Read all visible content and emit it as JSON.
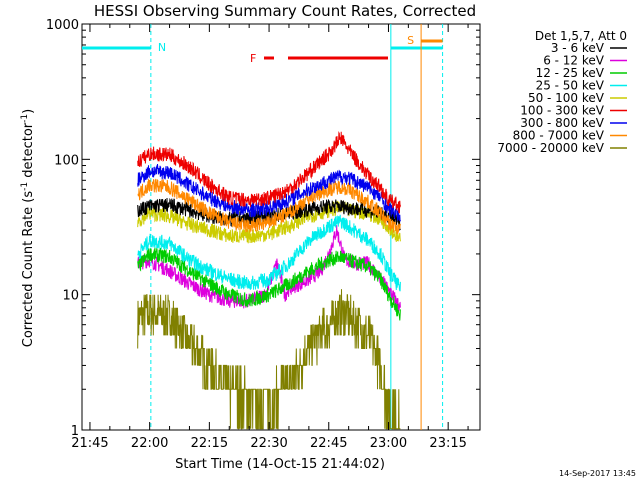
{
  "chart_data": {
    "type": "line",
    "title": "HESSI Observing Summary Count Rates, Corrected",
    "xlabel": "Start Time (14-Oct-15 21:44:02)",
    "ylabel": "Corrected Count Rate (s⁻¹ detector⁻¹)",
    "ylabel_main": "Corrected Count Rate (s",
    "ylabel_exp1": "-1",
    "ylabel_mid": " detector",
    "ylabel_exp2": "-1",
    "ylabel_end": ")",
    "yscale": "log",
    "ylim": [
      1,
      1000
    ],
    "xlim_minutes": [
      -2,
      98
    ],
    "x_tick_labels": [
      {
        "t": 0,
        "label": "21:45"
      },
      {
        "t": 15,
        "label": "22:00"
      },
      {
        "t": 30,
        "label": "22:15"
      },
      {
        "t": 45,
        "label": "22:30"
      },
      {
        "t": 60,
        "label": "22:45"
      },
      {
        "t": 75,
        "label": "23:00"
      },
      {
        "t": 90,
        "label": "23:15"
      }
    ],
    "y_tick_labels": [
      {
        "v": 1,
        "label": "1"
      },
      {
        "v": 10,
        "label": "10"
      },
      {
        "v": 100,
        "label": "100"
      },
      {
        "v": 1000,
        "label": "1000"
      }
    ],
    "legend_title": "Det 1,5,7, Att 0",
    "legend_position": "right",
    "series": [
      {
        "name": "3 - 6 keV",
        "color": "#000000",
        "values": [
          [
            12,
            42
          ],
          [
            15,
            45
          ],
          [
            20,
            46
          ],
          [
            25,
            42
          ],
          [
            30,
            38
          ],
          [
            35,
            36
          ],
          [
            40,
            37
          ],
          [
            45,
            38
          ],
          [
            50,
            40
          ],
          [
            55,
            43
          ],
          [
            60,
            45
          ],
          [
            63,
            45
          ],
          [
            65,
            44
          ],
          [
            70,
            42
          ],
          [
            73,
            40
          ],
          [
            75,
            38
          ],
          [
            78,
            34
          ]
        ]
      },
      {
        "name": "6 - 12 keV",
        "color": "#dd00dd",
        "values": [
          [
            12,
            17
          ],
          [
            15,
            18
          ],
          [
            20,
            15
          ],
          [
            25,
            12
          ],
          [
            30,
            10
          ],
          [
            35,
            9
          ],
          [
            40,
            9
          ],
          [
            44,
            10
          ],
          [
            47,
            17
          ],
          [
            49,
            10
          ],
          [
            50,
            11
          ],
          [
            55,
            13
          ],
          [
            58,
            15
          ],
          [
            60,
            20
          ],
          [
            62,
            30
          ],
          [
            64,
            18
          ],
          [
            67,
            17
          ],
          [
            70,
            17
          ],
          [
            73,
            13
          ],
          [
            75,
            11
          ],
          [
            78,
            8
          ]
        ]
      },
      {
        "name": "12 - 25 keV",
        "color": "#00cc00",
        "values": [
          [
            12,
            16
          ],
          [
            15,
            20
          ],
          [
            20,
            19
          ],
          [
            25,
            15
          ],
          [
            30,
            12
          ],
          [
            35,
            10
          ],
          [
            40,
            9
          ],
          [
            45,
            10
          ],
          [
            50,
            12
          ],
          [
            55,
            15
          ],
          [
            60,
            18
          ],
          [
            63,
            19
          ],
          [
            65,
            18
          ],
          [
            70,
            16
          ],
          [
            73,
            13
          ],
          [
            75,
            10
          ],
          [
            78,
            7
          ]
        ]
      },
      {
        "name": "25 - 50 keV",
        "color": "#00eeee",
        "values": [
          [
            12,
            20
          ],
          [
            15,
            25
          ],
          [
            20,
            24
          ],
          [
            25,
            18
          ],
          [
            30,
            15
          ],
          [
            35,
            13
          ],
          [
            40,
            12
          ],
          [
            45,
            13
          ],
          [
            50,
            17
          ],
          [
            55,
            25
          ],
          [
            60,
            32
          ],
          [
            63,
            35
          ],
          [
            65,
            32
          ],
          [
            70,
            25
          ],
          [
            73,
            20
          ],
          [
            75,
            15
          ],
          [
            78,
            11
          ]
        ]
      },
      {
        "name": "50 - 100 keV",
        "color": "#cccc00",
        "values": [
          [
            12,
            35
          ],
          [
            15,
            40
          ],
          [
            20,
            38
          ],
          [
            25,
            33
          ],
          [
            30,
            30
          ],
          [
            35,
            27
          ],
          [
            40,
            27
          ],
          [
            45,
            28
          ],
          [
            50,
            32
          ],
          [
            55,
            38
          ],
          [
            60,
            42
          ],
          [
            63,
            44
          ],
          [
            65,
            42
          ],
          [
            70,
            40
          ],
          [
            73,
            36
          ],
          [
            75,
            32
          ],
          [
            78,
            25
          ]
        ]
      },
      {
        "name": "100 - 300 keV",
        "color": "#ee0000",
        "values": [
          [
            12,
            95
          ],
          [
            15,
            110
          ],
          [
            20,
            108
          ],
          [
            25,
            88
          ],
          [
            30,
            65
          ],
          [
            35,
            52
          ],
          [
            40,
            50
          ],
          [
            45,
            52
          ],
          [
            50,
            60
          ],
          [
            55,
            80
          ],
          [
            60,
            110
          ],
          [
            63,
            145
          ],
          [
            65,
            118
          ],
          [
            70,
            75
          ],
          [
            73,
            62
          ],
          [
            75,
            50
          ],
          [
            78,
            45
          ]
        ]
      },
      {
        "name": "300 - 800 keV",
        "color": "#0000ee",
        "values": [
          [
            12,
            70
          ],
          [
            15,
            82
          ],
          [
            20,
            80
          ],
          [
            25,
            64
          ],
          [
            30,
            52
          ],
          [
            35,
            45
          ],
          [
            40,
            42
          ],
          [
            45,
            44
          ],
          [
            50,
            50
          ],
          [
            55,
            60
          ],
          [
            60,
            70
          ],
          [
            63,
            75
          ],
          [
            65,
            73
          ],
          [
            70,
            62
          ],
          [
            73,
            52
          ],
          [
            75,
            44
          ],
          [
            78,
            38
          ]
        ]
      },
      {
        "name": "800 - 7000 keV",
        "color": "#ff8800",
        "values": [
          [
            12,
            55
          ],
          [
            15,
            65
          ],
          [
            20,
            62
          ],
          [
            25,
            50
          ],
          [
            30,
            40
          ],
          [
            35,
            34
          ],
          [
            40,
            32
          ],
          [
            45,
            34
          ],
          [
            50,
            40
          ],
          [
            55,
            52
          ],
          [
            60,
            60
          ],
          [
            63,
            63
          ],
          [
            65,
            60
          ],
          [
            70,
            48
          ],
          [
            73,
            40
          ],
          [
            75,
            34
          ],
          [
            78,
            30
          ]
        ]
      },
      {
        "name": "7000 - 20000 keV",
        "color": "#808000",
        "values": [
          [
            12,
            6.5
          ],
          [
            15,
            7.5
          ],
          [
            20,
            7
          ],
          [
            25,
            4.5
          ],
          [
            30,
            3
          ],
          [
            35,
            2
          ],
          [
            40,
            1.8
          ],
          [
            45,
            1.6
          ],
          [
            50,
            2.2
          ],
          [
            55,
            4
          ],
          [
            60,
            6
          ],
          [
            63,
            7.5
          ],
          [
            65,
            7
          ],
          [
            70,
            5
          ],
          [
            73,
            3
          ],
          [
            75,
            1.5
          ],
          [
            78,
            1.1
          ]
        ]
      }
    ],
    "annotations": {
      "night_label": "N",
      "saa_label": "S",
      "flare_label": "F"
    }
  },
  "footer_date": "14-Sep-2017 13:45"
}
